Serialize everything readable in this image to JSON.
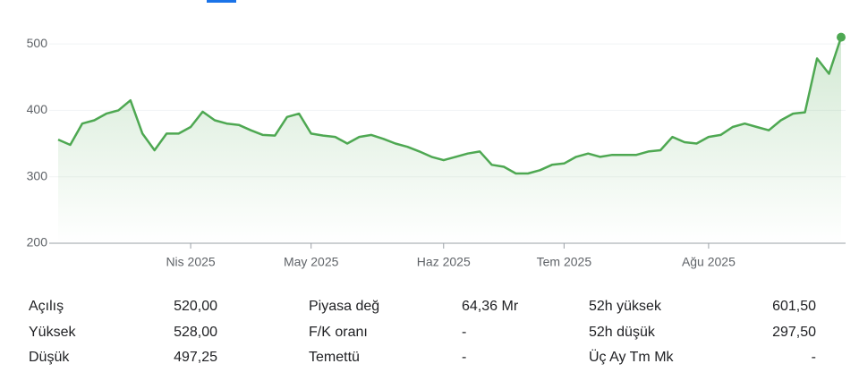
{
  "chart_data": {
    "type": "line",
    "categories": [
      null,
      null,
      null,
      null,
      null,
      null,
      null,
      null,
      null,
      null,
      null,
      "Nis 2025",
      null,
      null,
      null,
      null,
      null,
      null,
      null,
      null,
      null,
      "May 2025",
      null,
      null,
      null,
      null,
      null,
      null,
      null,
      null,
      null,
      null,
      "Haz 2025",
      null,
      null,
      null,
      null,
      null,
      null,
      null,
      null,
      null,
      "Tem 2025",
      null,
      null,
      null,
      null,
      null,
      null,
      null,
      null,
      null,
      null,
      null,
      "Ağu 2025",
      null,
      null,
      null,
      null,
      null,
      null,
      null,
      null,
      null,
      null,
      null
    ],
    "series": [
      {
        "color": "#4ea852",
        "values": [
          356,
          348,
          380,
          385,
          395,
          400,
          415,
          365,
          340,
          365,
          365,
          375,
          398,
          385,
          380,
          378,
          370,
          363,
          362,
          390,
          395,
          365,
          362,
          360,
          350,
          360,
          363,
          357,
          350,
          345,
          338,
          330,
          325,
          330,
          335,
          338,
          318,
          315,
          305,
          305,
          310,
          318,
          320,
          330,
          335,
          330,
          333,
          333,
          333,
          338,
          340,
          360,
          352,
          350,
          360,
          363,
          375,
          380,
          375,
          370,
          385,
          395,
          397,
          478,
          455,
          510
        ]
      }
    ],
    "ylim": [
      200,
      520
    ],
    "yticks": [
      200,
      300,
      400,
      500
    ],
    "grid": true
  },
  "stats": {
    "rows": [
      [
        "Açılış",
        "520,00",
        "Piyasa değ",
        "64,36 Mr",
        "52h yüksek",
        "601,50"
      ],
      [
        "Yüksek",
        "528,00",
        "F/K oranı",
        "-",
        "52h düşük",
        "297,50"
      ],
      [
        "Düşük",
        "497,25",
        "Temettü",
        "-",
        "Üç Ay Tm Mk",
        "-"
      ]
    ]
  }
}
